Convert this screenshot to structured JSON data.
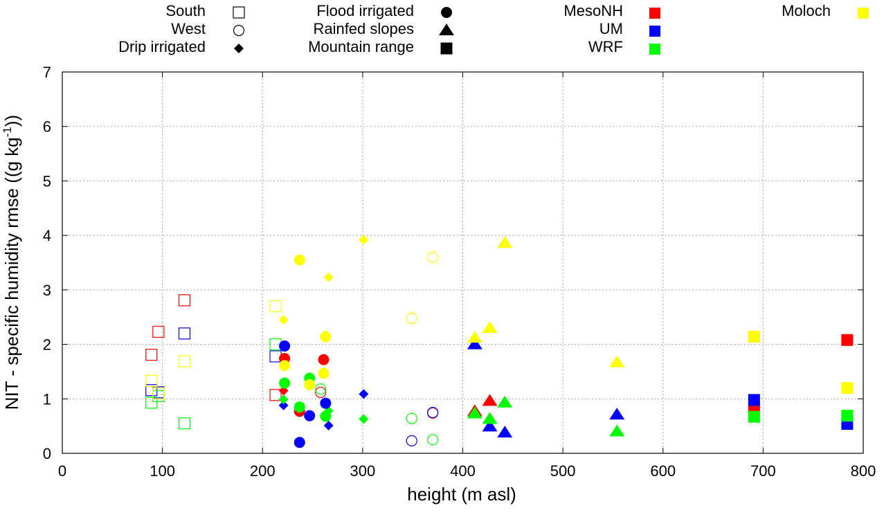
{
  "chart_data": {
    "type": "scatter",
    "xlabel": "height (m asl)",
    "ylabel": "NIT - specific humidity rmse ((g kg",
    "ylabel_sup": "-1",
    "ylabel_end": "))",
    "xlim": [
      0,
      800
    ],
    "ylim": [
      0,
      7
    ],
    "xticks": [
      "0",
      "100",
      "200",
      "300",
      "400",
      "500",
      "600",
      "700",
      "800"
    ],
    "yticks": [
      "0",
      "1",
      "2",
      "3",
      "4",
      "5",
      "6",
      "7"
    ],
    "grid": true,
    "legend_placement": "top",
    "models": [
      {
        "name": "MesoNH",
        "color": "#ff0000"
      },
      {
        "name": "UM",
        "color": "#0000ff"
      },
      {
        "name": "WRF",
        "color": "#00ff00"
      },
      {
        "name": "Moloch",
        "color": "#ffff00"
      }
    ],
    "site_types": [
      {
        "name": "South",
        "marker": "square-open"
      },
      {
        "name": "West",
        "marker": "circle-open"
      },
      {
        "name": "Drip irrigated",
        "marker": "diamond"
      },
      {
        "name": "Flood irrigated",
        "marker": "circle"
      },
      {
        "name": "Rainfed slopes",
        "marker": "triangle"
      },
      {
        "name": "Mountain range",
        "marker": "square"
      }
    ],
    "points": [
      {
        "x": 89,
        "y": 1.81,
        "type": "South",
        "model": "MesoNH"
      },
      {
        "x": 96,
        "y": 2.23,
        "type": "South",
        "model": "MesoNH"
      },
      {
        "x": 122,
        "y": 2.81,
        "type": "South",
        "model": "MesoNH"
      },
      {
        "x": 213,
        "y": 1.07,
        "type": "South",
        "model": "MesoNH"
      },
      {
        "x": 89,
        "y": 1.16,
        "type": "South",
        "model": "UM"
      },
      {
        "x": 96,
        "y": 1.12,
        "type": "South",
        "model": "UM"
      },
      {
        "x": 122,
        "y": 2.2,
        "type": "South",
        "model": "UM"
      },
      {
        "x": 213,
        "y": 1.78,
        "type": "South",
        "model": "UM"
      },
      {
        "x": 89,
        "y": 0.93,
        "type": "South",
        "model": "WRF"
      },
      {
        "x": 96,
        "y": 1.05,
        "type": "South",
        "model": "WRF"
      },
      {
        "x": 122,
        "y": 0.55,
        "type": "South",
        "model": "WRF"
      },
      {
        "x": 213,
        "y": 2.0,
        "type": "South",
        "model": "WRF"
      },
      {
        "x": 89,
        "y": 1.33,
        "type": "South",
        "model": "Moloch"
      },
      {
        "x": 96,
        "y": 1.1,
        "type": "South",
        "model": "Moloch"
      },
      {
        "x": 122,
        "y": 1.69,
        "type": "South",
        "model": "Moloch"
      },
      {
        "x": 213,
        "y": 2.7,
        "type": "South",
        "model": "Moloch"
      },
      {
        "x": 258,
        "y": 1.12,
        "type": "West",
        "model": "MesoNH"
      },
      {
        "x": 370,
        "y": 0.74,
        "type": "West",
        "model": "MesoNH"
      },
      {
        "x": 349,
        "y": 0.23,
        "type": "West",
        "model": "UM"
      },
      {
        "x": 370,
        "y": 0.75,
        "type": "West",
        "model": "UM"
      },
      {
        "x": 258,
        "y": 1.18,
        "type": "West",
        "model": "WRF"
      },
      {
        "x": 349,
        "y": 0.64,
        "type": "West",
        "model": "WRF"
      },
      {
        "x": 370,
        "y": 0.25,
        "type": "West",
        "model": "WRF"
      },
      {
        "x": 349,
        "y": 2.48,
        "type": "West",
        "model": "Moloch"
      },
      {
        "x": 370,
        "y": 3.6,
        "type": "West",
        "model": "Moloch"
      },
      {
        "x": 221,
        "y": 1.15,
        "type": "Drip irrigated",
        "model": "MesoNH"
      },
      {
        "x": 221,
        "y": 0.88,
        "type": "Drip irrigated",
        "model": "UM"
      },
      {
        "x": 266,
        "y": 0.51,
        "type": "Drip irrigated",
        "model": "UM"
      },
      {
        "x": 301,
        "y": 1.09,
        "type": "Drip irrigated",
        "model": "UM"
      },
      {
        "x": 221,
        "y": 0.99,
        "type": "Drip irrigated",
        "model": "WRF"
      },
      {
        "x": 266,
        "y": 0.78,
        "type": "Drip irrigated",
        "model": "WRF"
      },
      {
        "x": 301,
        "y": 0.63,
        "type": "Drip irrigated",
        "model": "WRF"
      },
      {
        "x": 221,
        "y": 2.45,
        "type": "Drip irrigated",
        "model": "Moloch"
      },
      {
        "x": 266,
        "y": 3.23,
        "type": "Drip irrigated",
        "model": "Moloch"
      },
      {
        "x": 301,
        "y": 3.92,
        "type": "Drip irrigated",
        "model": "Moloch"
      },
      {
        "x": 222,
        "y": 1.74,
        "type": "Flood irrigated",
        "model": "MesoNH"
      },
      {
        "x": 237,
        "y": 0.77,
        "type": "Flood irrigated",
        "model": "MesoNH"
      },
      {
        "x": 261,
        "y": 1.72,
        "type": "Flood irrigated",
        "model": "MesoNH"
      },
      {
        "x": 222,
        "y": 1.97,
        "type": "Flood irrigated",
        "model": "UM"
      },
      {
        "x": 237,
        "y": 0.2,
        "type": "Flood irrigated",
        "model": "UM"
      },
      {
        "x": 247,
        "y": 0.69,
        "type": "Flood irrigated",
        "model": "UM"
      },
      {
        "x": 263,
        "y": 0.92,
        "type": "Flood irrigated",
        "model": "UM"
      },
      {
        "x": 222,
        "y": 1.29,
        "type": "Flood irrigated",
        "model": "WRF"
      },
      {
        "x": 237,
        "y": 0.85,
        "type": "Flood irrigated",
        "model": "WRF"
      },
      {
        "x": 247,
        "y": 1.38,
        "type": "Flood irrigated",
        "model": "WRF"
      },
      {
        "x": 263,
        "y": 0.68,
        "type": "Flood irrigated",
        "model": "WRF"
      },
      {
        "x": 222,
        "y": 1.61,
        "type": "Flood irrigated",
        "model": "Moloch"
      },
      {
        "x": 237,
        "y": 3.55,
        "type": "Flood irrigated",
        "model": "Moloch"
      },
      {
        "x": 247,
        "y": 1.26,
        "type": "Flood irrigated",
        "model": "Moloch"
      },
      {
        "x": 261,
        "y": 1.47,
        "type": "Flood irrigated",
        "model": "Moloch"
      },
      {
        "x": 263,
        "y": 2.14,
        "type": "Flood irrigated",
        "model": "Moloch"
      },
      {
        "x": 412,
        "y": 0.77,
        "type": "Rainfed slopes",
        "model": "MesoNH"
      },
      {
        "x": 427,
        "y": 0.96,
        "type": "Rainfed slopes",
        "model": "MesoNH"
      },
      {
        "x": 412,
        "y": 2.0,
        "type": "Rainfed slopes",
        "model": "UM"
      },
      {
        "x": 427,
        "y": 0.49,
        "type": "Rainfed slopes",
        "model": "UM"
      },
      {
        "x": 442,
        "y": 0.38,
        "type": "Rainfed slopes",
        "model": "UM"
      },
      {
        "x": 554,
        "y": 0.71,
        "type": "Rainfed slopes",
        "model": "UM"
      },
      {
        "x": 412,
        "y": 0.73,
        "type": "Rainfed slopes",
        "model": "WRF"
      },
      {
        "x": 427,
        "y": 0.63,
        "type": "Rainfed slopes",
        "model": "WRF"
      },
      {
        "x": 442,
        "y": 0.93,
        "type": "Rainfed slopes",
        "model": "WRF"
      },
      {
        "x": 554,
        "y": 0.4,
        "type": "Rainfed slopes",
        "model": "WRF"
      },
      {
        "x": 412,
        "y": 2.12,
        "type": "Rainfed slopes",
        "model": "Moloch"
      },
      {
        "x": 427,
        "y": 2.3,
        "type": "Rainfed slopes",
        "model": "Moloch"
      },
      {
        "x": 442,
        "y": 3.86,
        "type": "Rainfed slopes",
        "model": "Moloch"
      },
      {
        "x": 554,
        "y": 1.67,
        "type": "Rainfed slopes",
        "model": "Moloch"
      },
      {
        "x": 691,
        "y": 0.84,
        "type": "Mountain range",
        "model": "MesoNH"
      },
      {
        "x": 784,
        "y": 2.08,
        "type": "Mountain range",
        "model": "MesoNH"
      },
      {
        "x": 691,
        "y": 0.98,
        "type": "Mountain range",
        "model": "UM"
      },
      {
        "x": 784,
        "y": 0.54,
        "type": "Mountain range",
        "model": "UM"
      },
      {
        "x": 691,
        "y": 0.67,
        "type": "Mountain range",
        "model": "WRF"
      },
      {
        "x": 784,
        "y": 0.69,
        "type": "Mountain range",
        "model": "WRF"
      },
      {
        "x": 691,
        "y": 2.14,
        "type": "Mountain range",
        "model": "Moloch"
      },
      {
        "x": 784,
        "y": 1.2,
        "type": "Mountain range",
        "model": "Moloch"
      }
    ]
  }
}
